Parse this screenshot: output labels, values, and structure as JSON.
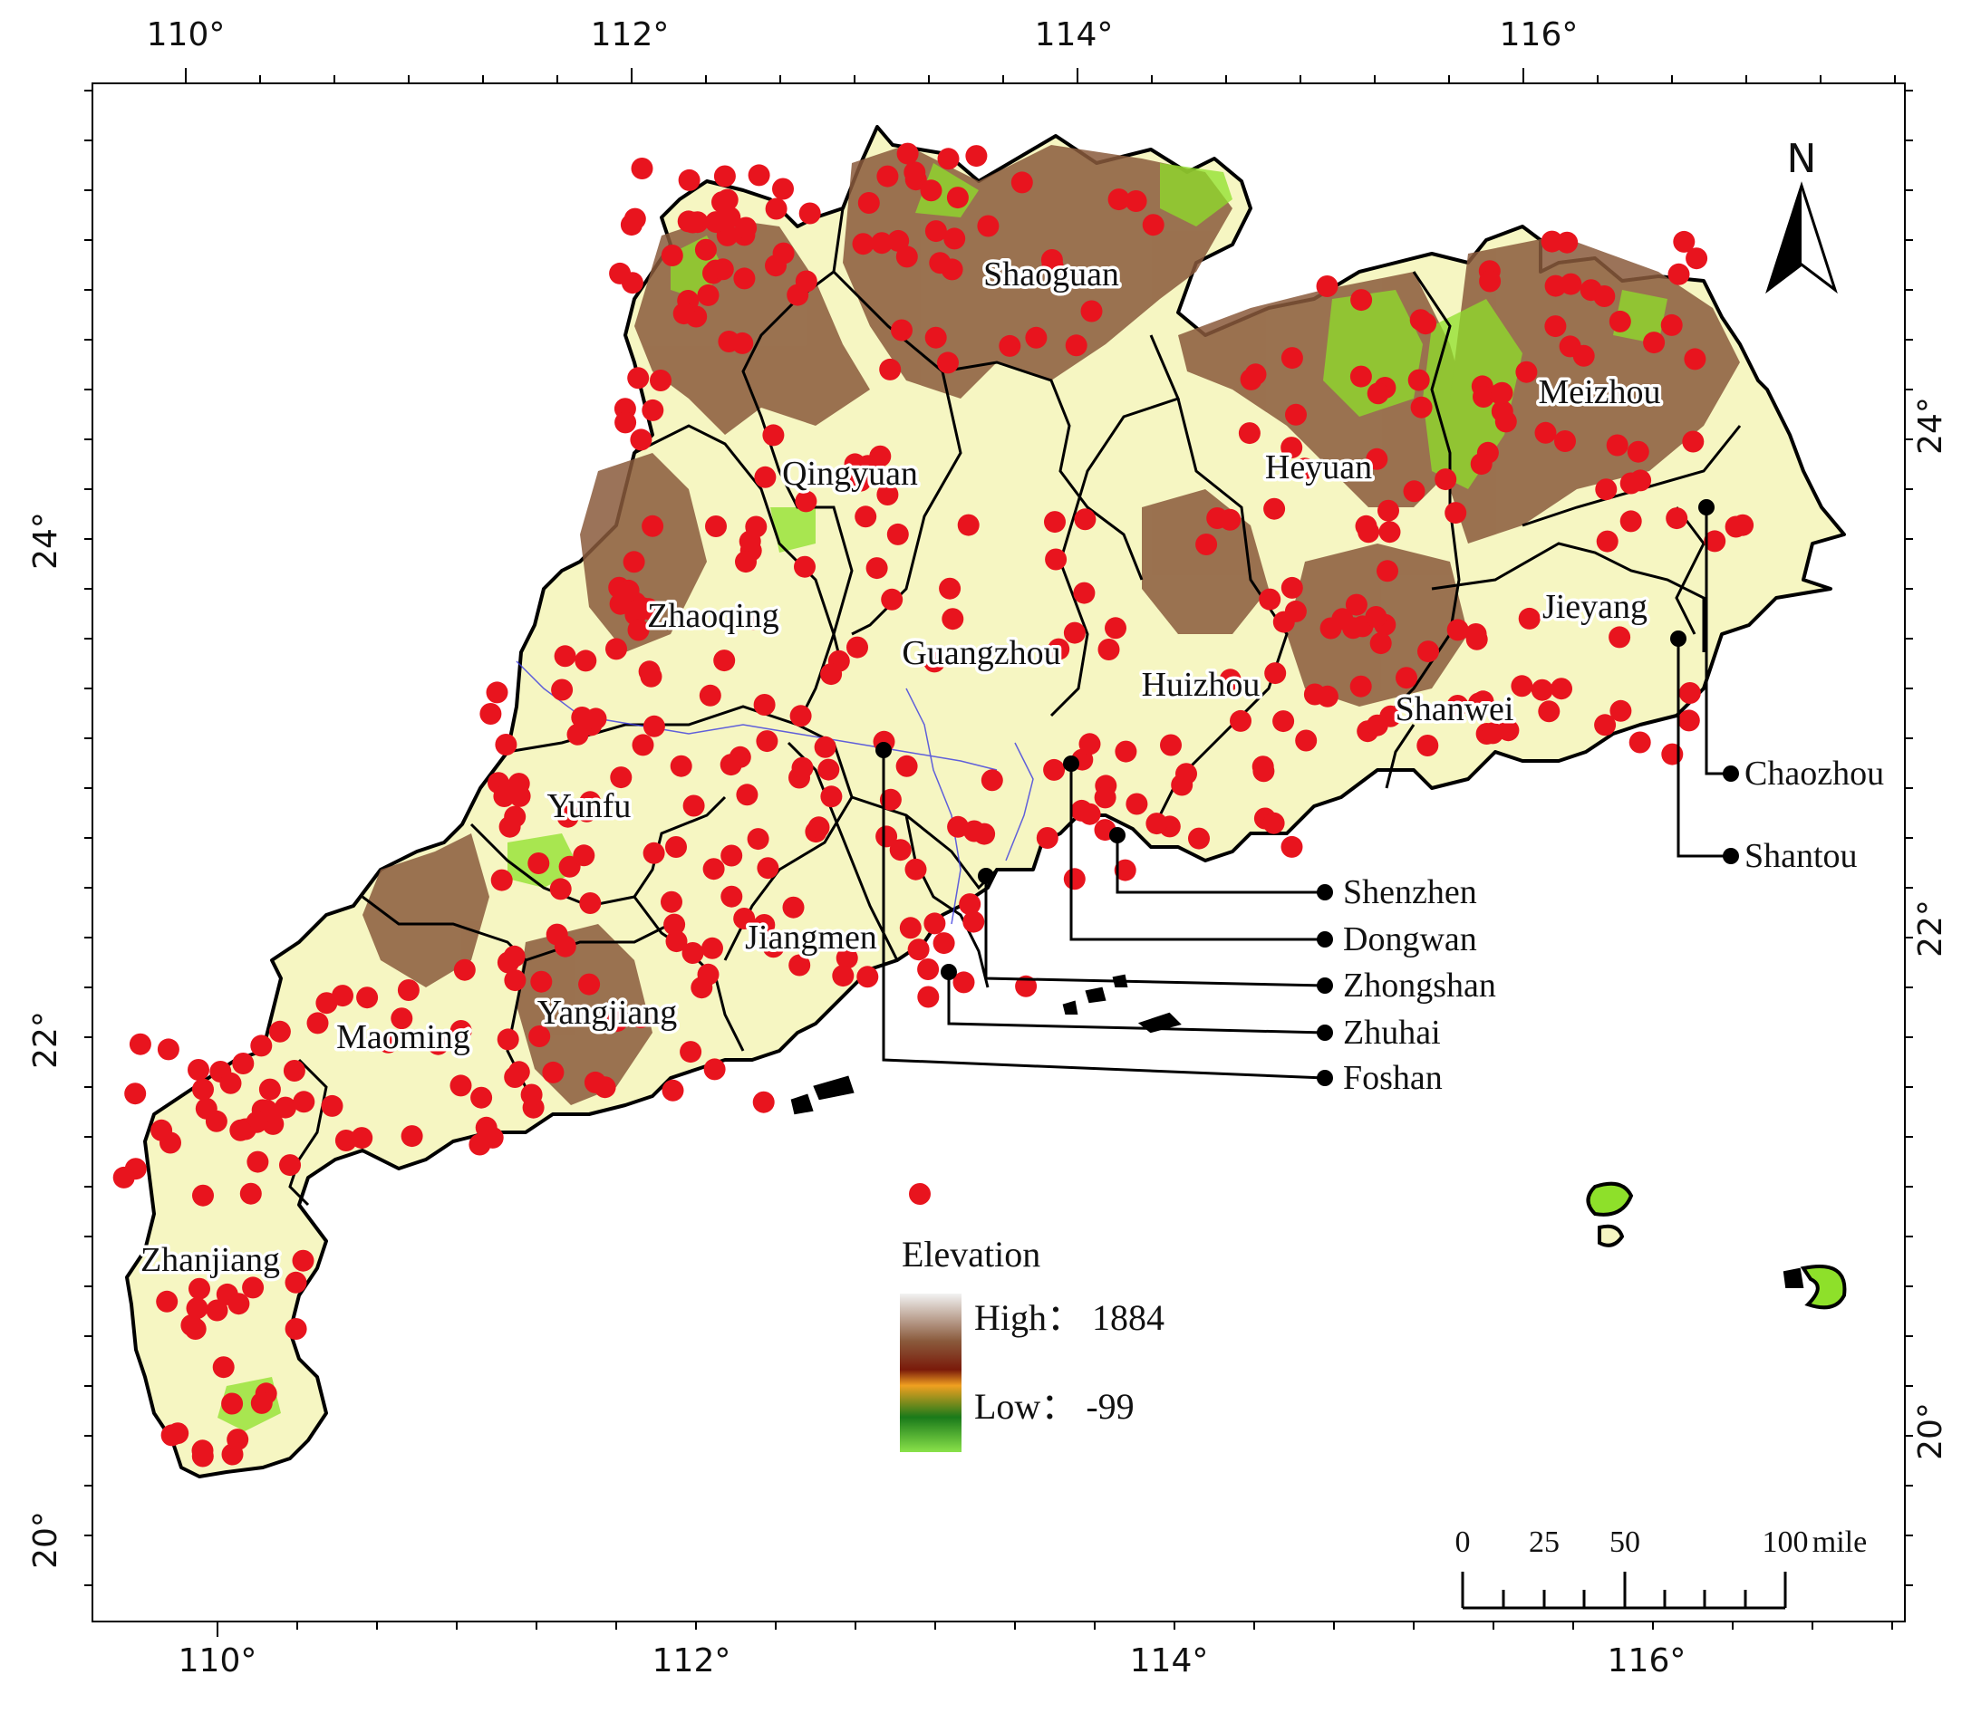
{
  "axes": {
    "top": [
      "110°",
      "112°",
      "114°",
      "116°"
    ],
    "bottom": [
      "110°",
      "112°",
      "114°",
      "116°"
    ],
    "left": [
      "24°",
      "22°",
      "20°"
    ],
    "right": [
      "24°",
      "22°",
      "20°"
    ]
  },
  "cities": [
    {
      "name": "Shaoguan"
    },
    {
      "name": "Meizhou"
    },
    {
      "name": "Qingyuan"
    },
    {
      "name": "Heyuan"
    },
    {
      "name": "Zhaoqing"
    },
    {
      "name": "Jieyang"
    },
    {
      "name": "Guangzhou"
    },
    {
      "name": "Huizhou"
    },
    {
      "name": "Shanwei"
    },
    {
      "name": "Yunfu"
    },
    {
      "name": "Jiangmen"
    },
    {
      "name": "Maoming"
    },
    {
      "name": "Yangjiang"
    },
    {
      "name": "Zhanjiang"
    }
  ],
  "callouts": {
    "right_group": [
      "Shenzhen",
      "Dongwan",
      "Zhongshan",
      "Zhuhai",
      "Foshan"
    ],
    "east_group": [
      "Chaozhou",
      "Shantou"
    ]
  },
  "north_arrow": {
    "label": "N"
  },
  "legend": {
    "title": "Elevation",
    "high": "High：  1884",
    "low": "Low：  -99",
    "colors": [
      "#f2f2f2",
      "#8a5a3c",
      "#7a1a0a",
      "#f0a020",
      "#1a7a1a",
      "#8ae24a"
    ]
  },
  "scale_bar": {
    "labels": [
      "0",
      "25",
      "50",
      "100"
    ],
    "unit": "mile"
  },
  "colors": {
    "sample_point": "#e8141e",
    "lowland": "#f6f6c2",
    "mountain": "#8a5a3c",
    "forest": "#8ee02a",
    "boundary": "#000000"
  }
}
